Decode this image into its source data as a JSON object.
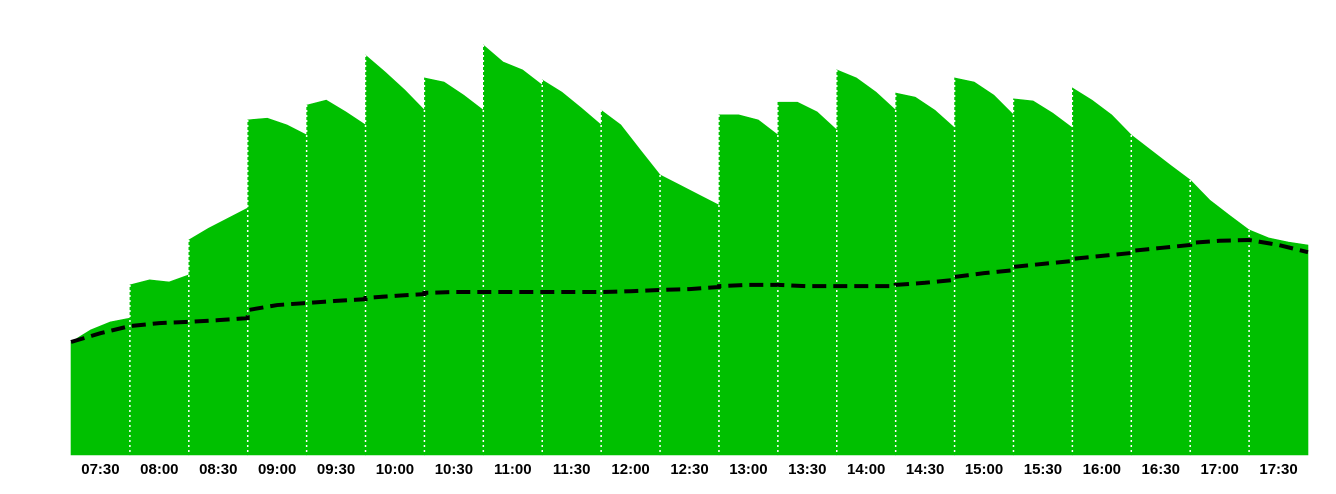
{
  "chart_data": {
    "type": "area",
    "categories": [
      "07:30",
      "08:00",
      "08:30",
      "09:00",
      "09:30",
      "10:00",
      "10:30",
      "11:00",
      "11:30",
      "12:00",
      "12:30",
      "13:00",
      "13:30",
      "14:00",
      "14:30",
      "15:00",
      "15:30",
      "16:00",
      "16:30",
      "17:00",
      "17:30"
    ],
    "ylim": [
      0,
      100
    ],
    "area": {
      "color": "#00c000",
      "values": [
        [
          26.9,
          29.8,
          31.7,
          32.6
        ],
        [
          40.5,
          41.7,
          41.2,
          42.9
        ],
        [
          51.2,
          54.0,
          56.4,
          58.8
        ],
        [
          79.8,
          80.2,
          78.6,
          76.2
        ],
        [
          83.3,
          84.5,
          81.7,
          78.6
        ],
        [
          95.2,
          91.2,
          86.9,
          82.1
        ],
        [
          89.8,
          88.8,
          85.7,
          82.1
        ],
        [
          97.6,
          93.6,
          91.7,
          88.1
        ],
        [
          89.3,
          86.4,
          82.6,
          78.6
        ],
        [
          82.1,
          78.6,
          72.6,
          66.7
        ],
        [
          66.7,
          64.3,
          61.9,
          59.5
        ],
        [
          81.0,
          81.0,
          79.8,
          76.2
        ],
        [
          84.0,
          84.0,
          81.7,
          77.4
        ],
        [
          91.7,
          89.8,
          86.4,
          82.1
        ],
        [
          86.2,
          85.2,
          82.1,
          77.9
        ],
        [
          89.8,
          88.8,
          85.7,
          81.0
        ],
        [
          84.8,
          84.3,
          81.4,
          77.9
        ],
        [
          87.4,
          84.5,
          81.0,
          76.2
        ],
        [
          76.2,
          72.6,
          69.0,
          65.5
        ],
        [
          65.5,
          60.7,
          57.1,
          53.6
        ],
        [
          53.6,
          51.7,
          50.7,
          50.0
        ]
      ]
    },
    "line": {
      "color": "#000000",
      "values": [
        [
          26.9,
          29.0,
          30.7
        ],
        [
          30.7,
          31.4,
          31.7
        ],
        [
          31.7,
          32.1,
          32.6
        ],
        [
          34.5,
          35.7,
          36.2
        ],
        [
          36.2,
          36.7,
          37.1
        ],
        [
          37.4,
          37.9,
          38.3
        ],
        [
          38.6,
          38.8,
          38.8
        ],
        [
          38.8,
          38.8,
          38.8
        ],
        [
          38.8,
          38.8,
          38.8
        ],
        [
          38.8,
          39.0,
          39.3
        ],
        [
          39.3,
          39.5,
          40.0
        ],
        [
          40.2,
          40.5,
          40.5
        ],
        [
          40.5,
          40.2,
          40.2
        ],
        [
          40.2,
          40.2,
          40.2
        ],
        [
          40.5,
          41.0,
          41.7
        ],
        [
          42.4,
          43.3,
          44.0
        ],
        [
          44.8,
          45.5,
          46.2
        ],
        [
          46.7,
          47.4,
          48.1
        ],
        [
          48.6,
          49.3,
          50.0
        ],
        [
          50.5,
          51.0,
          51.2
        ],
        [
          51.2,
          50.0,
          48.3
        ]
      ]
    }
  }
}
